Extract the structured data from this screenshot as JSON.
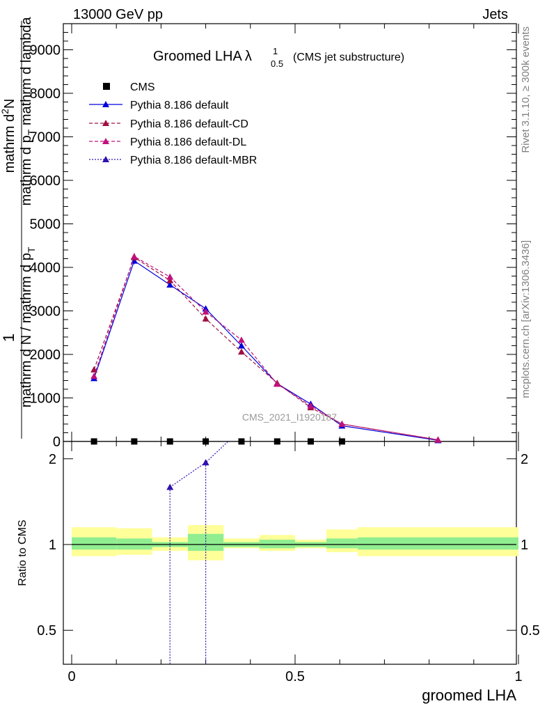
{
  "header": {
    "left": "13000 GeV pp",
    "right": "Jets"
  },
  "side": {
    "rivet": "Rivet 3.1.10, ≥ 300k events",
    "mcplots": "mcplots.cern.ch [arXiv:1306.3436]"
  },
  "watermark": "CMS_2021_I1920187",
  "title": {
    "main": "Groomed LHA",
    "lambda": "λ",
    "sup": "1",
    "sub": "0.5",
    "suffix": "(CMS jet substructure)"
  },
  "chart_data": {
    "type": "line",
    "title": "Groomed LHA λ^1_0.5 (CMS jet substructure)",
    "xlabel": "groomed LHA",
    "ylabel": "1 / mathrm d N / mathrm d p_T  mathrm d^2N / mathrm d p_T mathrm d lambda",
    "ylabel_parts": {
      "numerator": "1",
      "denominator": "mathrm d N / mathrm d p",
      "denominator_sub": "T",
      "right_top": "mathrm d",
      "right_sup": "2",
      "right_top2": "N",
      "right_bottom": "mathrm d p",
      "right_bottom_sub": "T",
      "right_bottom2": " mathrm d lambda"
    },
    "ratio_ylabel": "Ratio to CMS",
    "xlim": [
      0,
      1
    ],
    "ylim": [
      0,
      9600
    ],
    "ratio_ylim": [
      0.38,
      2.3
    ],
    "x_ticks": [
      {
        "v": 0,
        "label": "0"
      },
      {
        "v": 0.5,
        "label": "0.5"
      },
      {
        "v": 1,
        "label": "1"
      }
    ],
    "y_ticks": [
      {
        "v": 0,
        "label": "0"
      },
      {
        "v": 1000,
        "label": "1000"
      },
      {
        "v": 2000,
        "label": "2000"
      },
      {
        "v": 3000,
        "label": "3000"
      },
      {
        "v": 4000,
        "label": "4000"
      },
      {
        "v": 5000,
        "label": "5000"
      },
      {
        "v": 6000,
        "label": "6000"
      },
      {
        "v": 7000,
        "label": "7000"
      },
      {
        "v": 8000,
        "label": "8000"
      },
      {
        "v": 9000,
        "label": "9000"
      }
    ],
    "ratio_ticks": [
      {
        "v": 0.5,
        "label": "0.5"
      },
      {
        "v": 1,
        "label": "1"
      },
      {
        "v": 2,
        "label": "2"
      }
    ],
    "cms_points": [
      {
        "x": 0.05,
        "y": 0
      },
      {
        "x": 0.14,
        "y": 0
      },
      {
        "x": 0.22,
        "y": 0
      },
      {
        "x": 0.3,
        "y": 0
      },
      {
        "x": 0.38,
        "y": 0
      },
      {
        "x": 0.46,
        "y": 0
      },
      {
        "x": 0.535,
        "y": 0
      },
      {
        "x": 0.605,
        "y": 0
      }
    ],
    "cms_bands": [
      {
        "x0": 0.0,
        "x1": 0.1,
        "inner": [
          0.96,
          1.06
        ],
        "outer": [
          0.91,
          1.15
        ]
      },
      {
        "x0": 0.1,
        "x1": 0.18,
        "inner": [
          0.96,
          1.05
        ],
        "outer": [
          0.92,
          1.14
        ]
      },
      {
        "x0": 0.18,
        "x1": 0.26,
        "inner": [
          0.98,
          1.02
        ],
        "outer": [
          0.95,
          1.06
        ]
      },
      {
        "x0": 0.26,
        "x1": 0.34,
        "inner": [
          0.95,
          1.09
        ],
        "outer": [
          0.88,
          1.17
        ]
      },
      {
        "x0": 0.34,
        "x1": 0.42,
        "inner": [
          0.98,
          1.02
        ],
        "outer": [
          0.97,
          1.05
        ]
      },
      {
        "x0": 0.42,
        "x1": 0.5,
        "inner": [
          0.97,
          1.04
        ],
        "outer": [
          0.95,
          1.08
        ]
      },
      {
        "x0": 0.5,
        "x1": 0.57,
        "inner": [
          0.98,
          1.02
        ],
        "outer": [
          0.97,
          1.04
        ]
      },
      {
        "x0": 0.57,
        "x1": 0.64,
        "inner": [
          0.97,
          1.05
        ],
        "outer": [
          0.94,
          1.13
        ]
      },
      {
        "x0": 0.64,
        "x1": 1.0,
        "inner": [
          0.96,
          1.06
        ],
        "outer": [
          0.91,
          1.15
        ]
      }
    ],
    "series": [
      {
        "name": "Pythia 8.186 default",
        "style": "solid",
        "color": "#0000dd",
        "x": [
          0.05,
          0.14,
          0.22,
          0.3,
          0.38,
          0.46,
          0.535,
          0.605,
          0.82
        ],
        "y": [
          1450,
          4150,
          3600,
          3050,
          2200,
          1330,
          860,
          360,
          25
        ],
        "err": [
          60,
          80,
          70,
          70,
          60,
          50,
          40,
          30,
          10
        ]
      },
      {
        "name": "Pythia 8.186 default-CD",
        "style": "dashed",
        "color": "#a01040",
        "x": [
          0.05,
          0.14,
          0.22,
          0.3,
          0.38,
          0.46,
          0.535,
          0.605,
          0.82
        ],
        "y": [
          1650,
          4230,
          3700,
          2820,
          2060,
          1340,
          780,
          400,
          35
        ],
        "err": [
          60,
          80,
          70,
          70,
          60,
          50,
          40,
          30,
          10
        ]
      },
      {
        "name": "Pythia 8.186 default-DL",
        "style": "dashed",
        "color": "#c0107a",
        "x": [
          0.05,
          0.14,
          0.22,
          0.3,
          0.38,
          0.46,
          0.535,
          0.605,
          0.82
        ],
        "y": [
          1500,
          4250,
          3780,
          2980,
          2330,
          1320,
          820,
          400,
          40
        ],
        "err": [
          60,
          80,
          70,
          70,
          60,
          50,
          40,
          30,
          10
        ]
      },
      {
        "name": "Pythia 8.186 default-MBR",
        "style": "dotted",
        "color": "#3010b0",
        "x": [],
        "y": [],
        "ratio_x": [
          0.22,
          0.3,
          0.35
        ],
        "ratio_y": [
          1.59,
          1.94,
          2.3
        ]
      }
    ],
    "legend": [
      {
        "label": "CMS",
        "marker": "square",
        "color": "#000000"
      },
      {
        "label": "Pythia 8.186 default",
        "marker": "triangle",
        "color": "#0000dd",
        "line": "solid"
      },
      {
        "label": "Pythia 8.186 default-CD",
        "marker": "triangle",
        "color": "#a01040",
        "line": "dashed"
      },
      {
        "label": "Pythia 8.186 default-DL",
        "marker": "triangle",
        "color": "#c0107a",
        "line": "dashed"
      },
      {
        "label": "Pythia 8.186 default-MBR",
        "marker": "triangle",
        "color": "#3010b0",
        "line": "dotted"
      }
    ],
    "colors": {
      "band_inner": "#90ee90",
      "band_outer": "#ffff99"
    }
  }
}
